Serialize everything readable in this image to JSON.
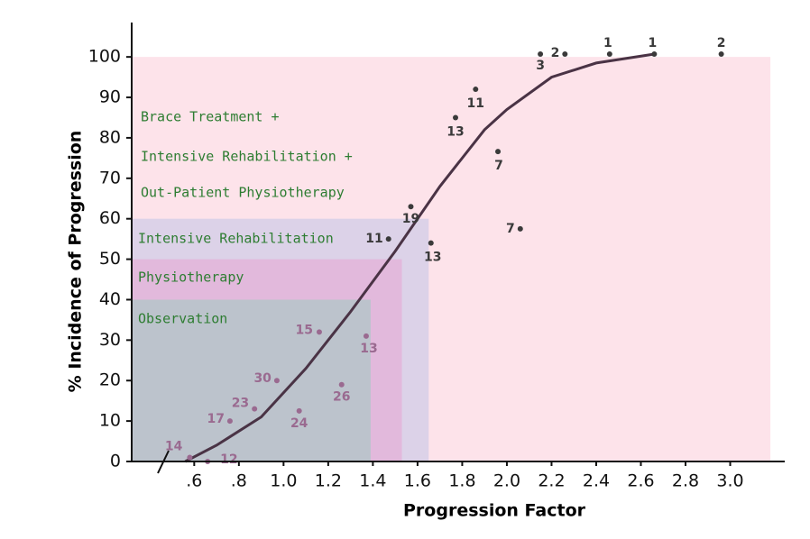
{
  "chart_data": {
    "type": "scatter",
    "x_label": "Progression Factor",
    "y_label": "% Incidence of Progression",
    "xlim": [
      0.32,
      3.22
    ],
    "ylim": [
      0,
      108.5
    ],
    "xticks": [
      {
        "value": 0.6,
        "label": ".6"
      },
      {
        "value": 0.8,
        "label": ".8"
      },
      {
        "value": 1.0,
        "label": "1.0"
      },
      {
        "value": 1.2,
        "label": "1.2"
      },
      {
        "value": 1.4,
        "label": "1.4"
      },
      {
        "value": 1.6,
        "label": "1.6"
      },
      {
        "value": 1.8,
        "label": "1.8"
      },
      {
        "value": 2.0,
        "label": "2.0"
      },
      {
        "value": 2.2,
        "label": "2.2"
      },
      {
        "value": 2.4,
        "label": "2.4"
      },
      {
        "value": 2.6,
        "label": "2.6"
      },
      {
        "value": 2.8,
        "label": "2.8"
      },
      {
        "value": 3.0,
        "label": "3.0"
      }
    ],
    "yticks": [
      0,
      10,
      20,
      30,
      40,
      50,
      60,
      70,
      80,
      90,
      100
    ],
    "regions": [
      {
        "xlim": [
          0.32,
          3.18
        ],
        "ylim": [
          0,
          100
        ],
        "color": "#fde3ea",
        "labels": [
          "Brace Treatment +",
          "Intensive Rehabilitation +",
          "Out-Patient Physiotherapy"
        ]
      },
      {
        "xlim": [
          0.32,
          1.65
        ],
        "ylim": [
          0,
          60
        ],
        "color": "#dcd2e8",
        "labels": [
          "Intensive Rehabilitation"
        ]
      },
      {
        "xlim": [
          0.32,
          1.53
        ],
        "ylim": [
          0,
          50
        ],
        "color": "#e2b9dc",
        "labels": [
          "Physiotherapy"
        ]
      },
      {
        "xlim": [
          0.32,
          1.39
        ],
        "ylim": [
          0,
          40
        ],
        "color": "#bcc3cc",
        "labels": [
          "Observation"
        ]
      }
    ],
    "series": [
      {
        "color": "#3a3a3a",
        "x": [
          0.58,
          0.66,
          0.76,
          0.87,
          0.97,
          1.07,
          1.16,
          1.26,
          1.37,
          1.47,
          1.57,
          1.66,
          1.77,
          1.86,
          1.96,
          2.06,
          2.15,
          2.26,
          2.46,
          2.66,
          2.96
        ],
        "values": [
          1,
          0,
          10,
          13,
          20,
          12.5,
          32,
          19,
          31,
          55,
          63,
          54,
          85,
          92,
          76.6,
          57.5,
          100.7,
          100.7,
          100.7,
          100.7,
          100.7
        ],
        "point_labels": [
          "14",
          "12",
          "17",
          "23",
          "30",
          "24",
          "15",
          "26",
          "13",
          "11",
          "19",
          "13",
          "13",
          "11",
          "7",
          "7",
          "3",
          "2",
          "1",
          "1",
          "2"
        ]
      }
    ],
    "curve": {
      "color": "#4a3345",
      "x": [
        0.56,
        0.7,
        0.9,
        1.1,
        1.3,
        1.5,
        1.7,
        1.9,
        2.0,
        2.2,
        2.4,
        2.66
      ],
      "values": [
        0,
        4,
        11,
        23,
        37,
        52,
        68,
        82,
        87,
        95,
        98.5,
        100.7
      ]
    }
  }
}
